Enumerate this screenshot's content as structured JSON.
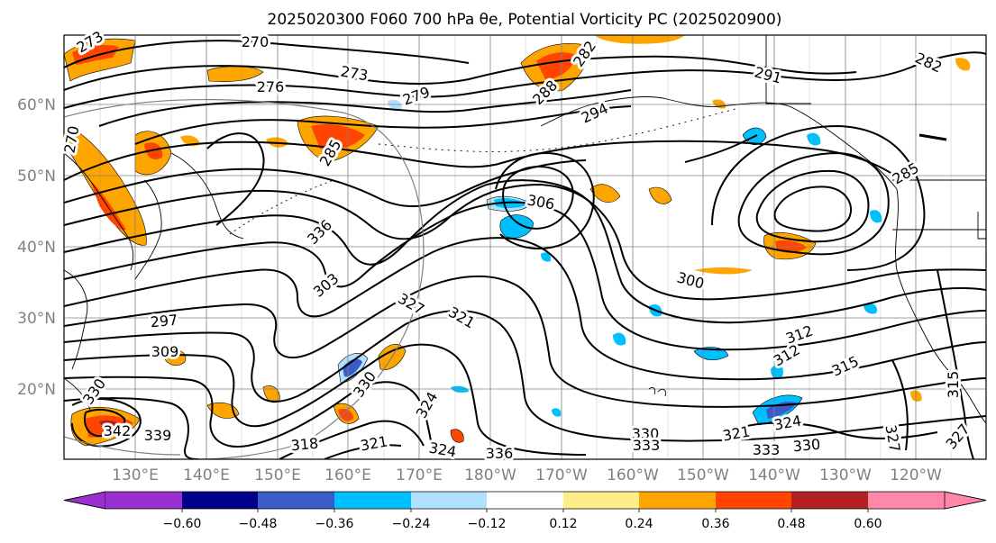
{
  "title": "2025020300 F060 700 hPa θe, Potential Vorticity PC (2025020900)",
  "map": {
    "lat_labels": [
      "20°N",
      "30°N",
      "40°N",
      "50°N",
      "60°N"
    ],
    "lon_labels": [
      "130°E",
      "140°E",
      "150°E",
      "160°E",
      "170°E",
      "180°W",
      "170°W",
      "160°W",
      "150°W",
      "140°W",
      "130°W",
      "120°W"
    ],
    "contour_labels": [
      "270",
      "273",
      "276",
      "279",
      "282",
      "285",
      "288",
      "291",
      "294",
      "297",
      "300",
      "303",
      "306",
      "309",
      "312",
      "315",
      "318",
      "321",
      "324",
      "327",
      "330",
      "333",
      "336",
      "339",
      "342"
    ]
  },
  "colorbar": {
    "ticks": [
      "−0.60",
      "−0.48",
      "−0.36",
      "−0.24",
      "−0.12",
      "0.12",
      "0.24",
      "0.36",
      "0.48",
      "0.60"
    ],
    "colors": [
      "#9b30d0",
      "#00008b",
      "#3a5bc8",
      "#00bfff",
      "#b0e2ff",
      "#ffffff",
      "#ffec8b",
      "#ffa500",
      "#ff4500",
      "#b22222",
      "#ff88a8"
    ],
    "extend_left_color": "#9b30d0",
    "extend_right_color": "#ff88a8"
  },
  "colors": {
    "contour": "#000000",
    "grid": "#808080",
    "axis_label": "#808080"
  }
}
